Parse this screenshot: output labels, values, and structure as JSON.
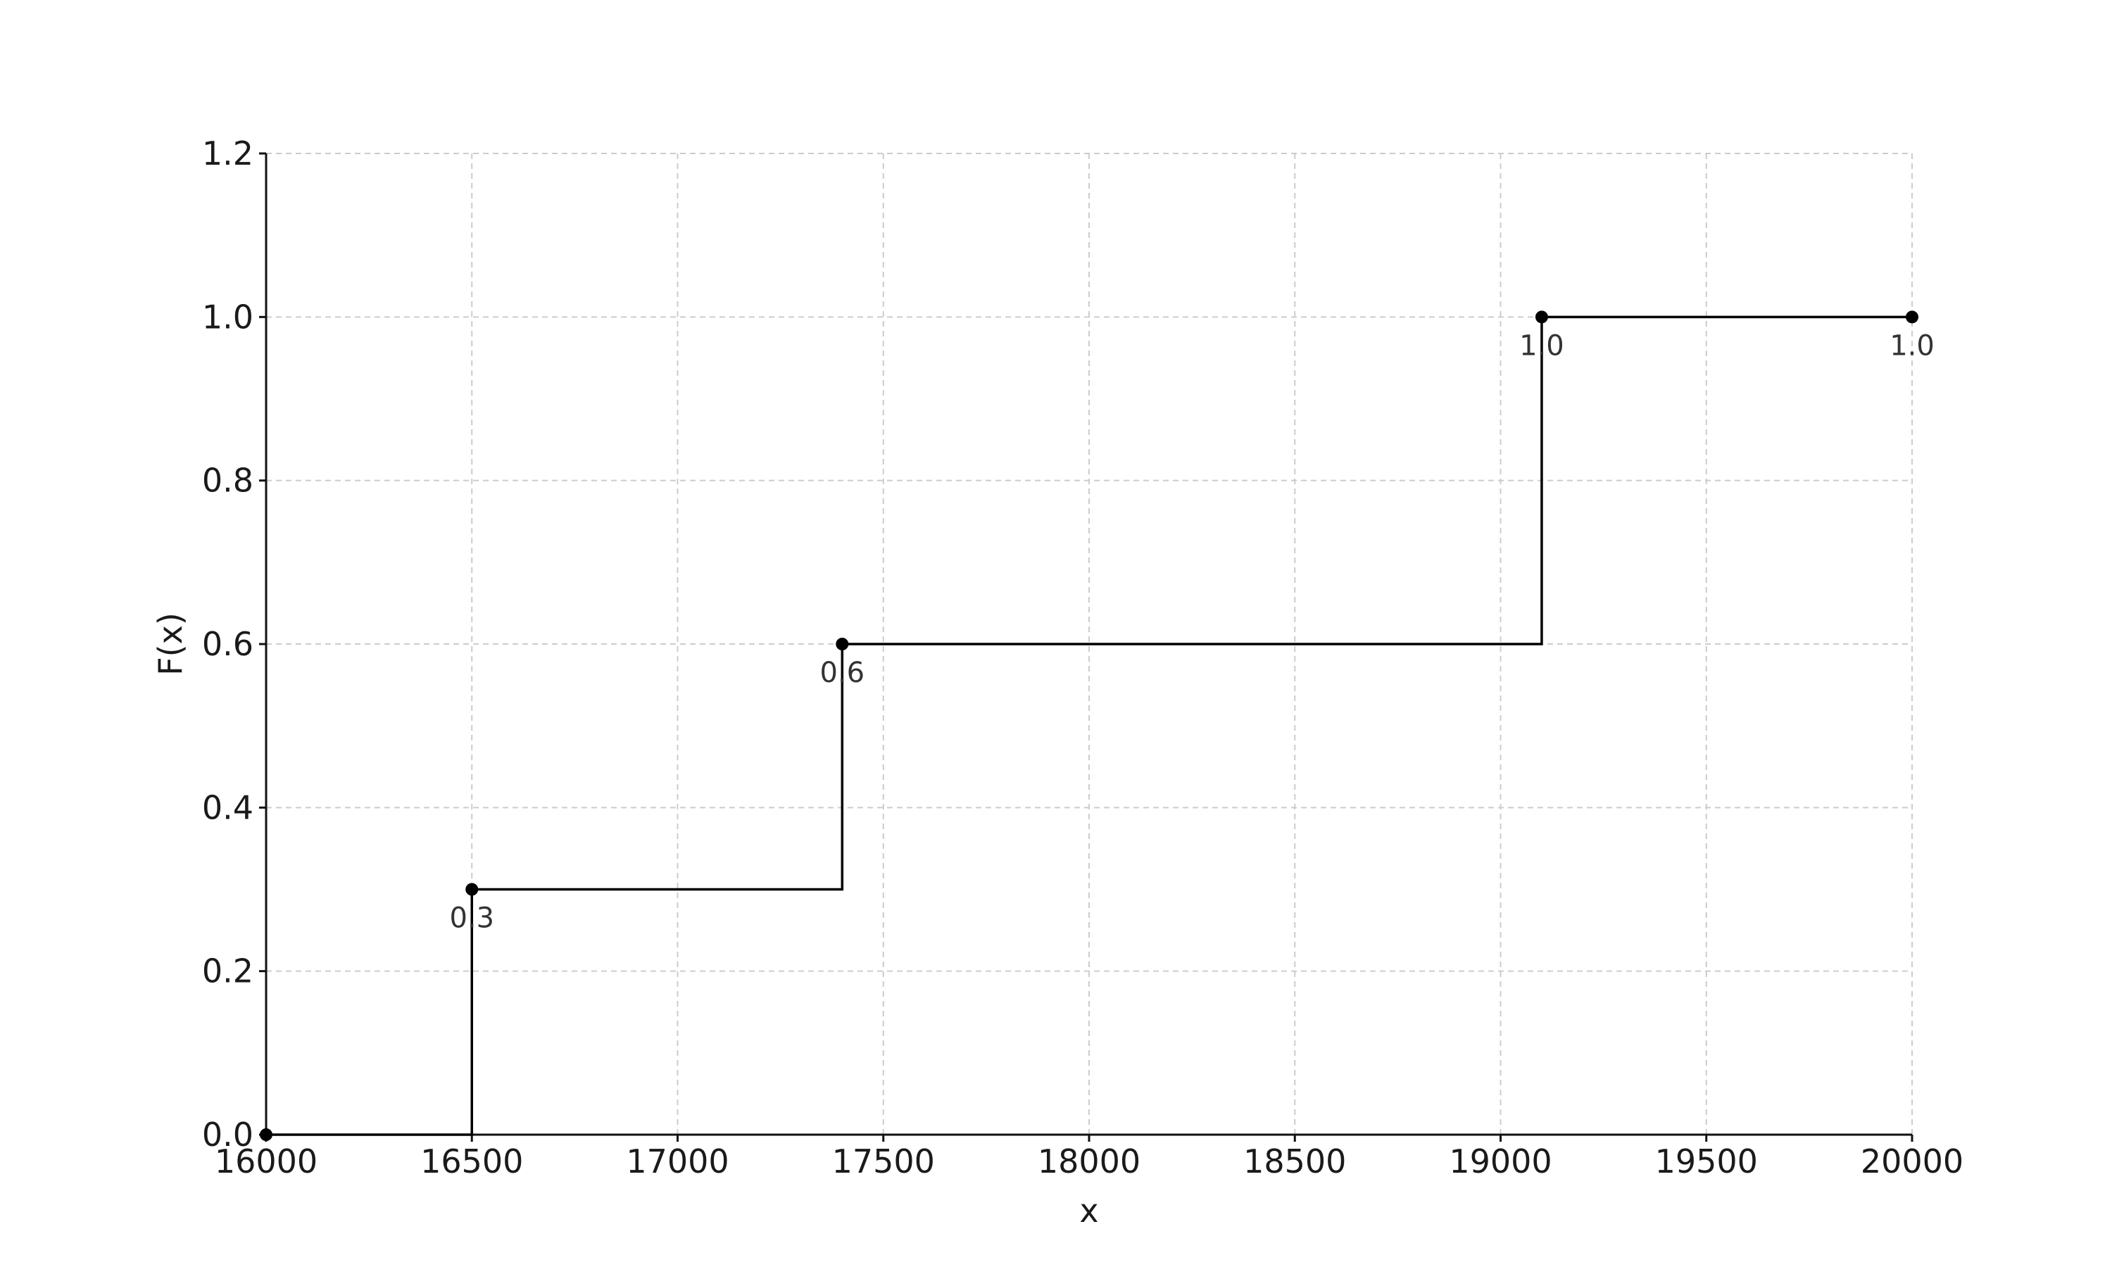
{
  "chart_data": {
    "type": "line",
    "subtype": "step-cdf",
    "title": "",
    "xlabel": "x",
    "ylabel": "F(x)",
    "xlim": [
      16000,
      20000
    ],
    "ylim": [
      0,
      1.2
    ],
    "x_ticks": [
      16000,
      16500,
      17000,
      17500,
      18000,
      18500,
      19000,
      19500,
      20000
    ],
    "x_tick_labels": [
      "16000",
      "16500",
      "17000",
      "17500",
      "18000",
      "18500",
      "19000",
      "19500",
      "20000"
    ],
    "y_ticks": [
      0,
      0.2,
      0.4,
      0.6,
      0.8,
      1.0,
      1.2
    ],
    "y_tick_labels": [
      "0.0",
      "0.2",
      "0.4",
      "0.6",
      "0.8",
      "1.0",
      "1.2"
    ],
    "grid": true,
    "step_points": [
      {
        "x": 16000,
        "y": 0.0
      },
      {
        "x": 16500,
        "y": 0.3
      },
      {
        "x": 17400,
        "y": 0.6
      },
      {
        "x": 19100,
        "y": 1.0
      },
      {
        "x": 20000,
        "y": 1.0
      }
    ],
    "annotations": [
      {
        "x": 16500,
        "y": 0.3,
        "text": "0.3"
      },
      {
        "x": 17400,
        "y": 0.6,
        "text": "0.6"
      },
      {
        "x": 19100,
        "y": 1.0,
        "text": "1.0"
      },
      {
        "x": 20000,
        "y": 1.0,
        "text": "1.0"
      }
    ],
    "colors": {
      "line": "#000000",
      "grid": "#cccccc",
      "text": "#1a1a1a"
    }
  }
}
